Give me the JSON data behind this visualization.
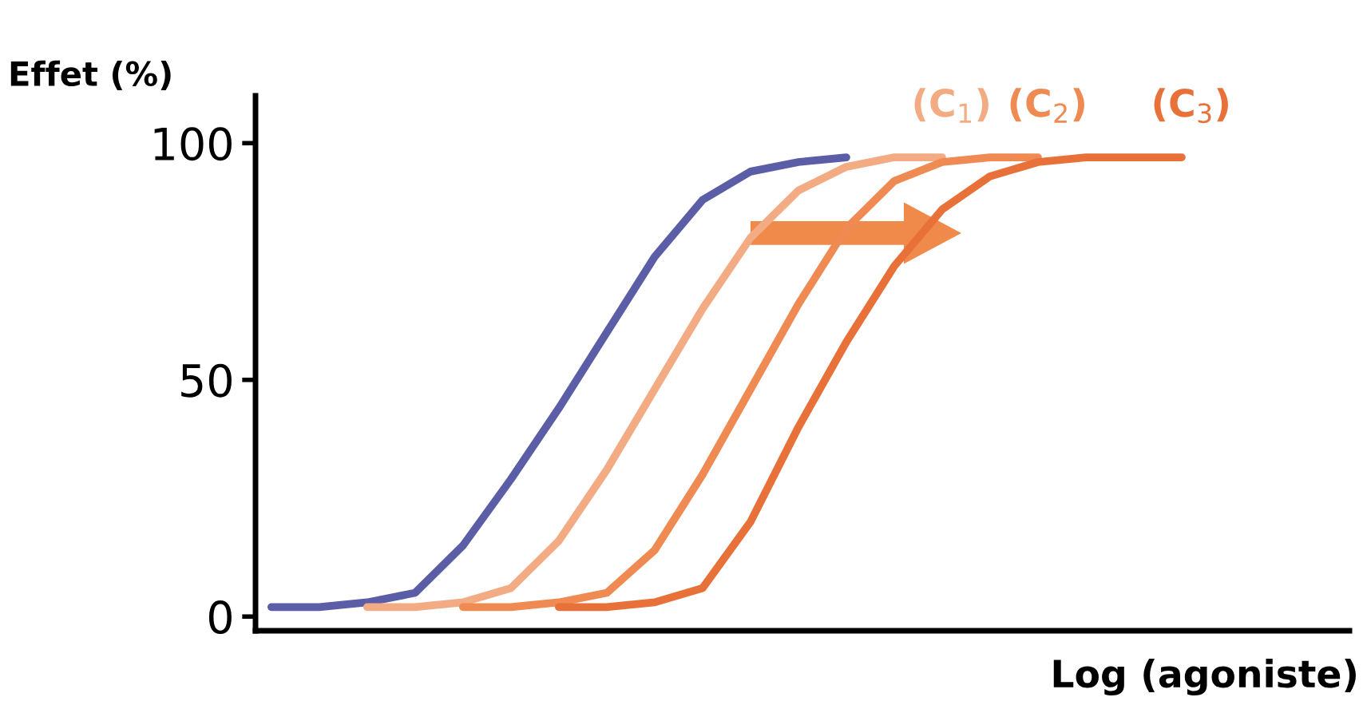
{
  "chart_data": {
    "type": "line",
    "ylabel": "Effet (%)",
    "xlabel": "Log (agoniste)",
    "categories": [
      null,
      null,
      null,
      null,
      null,
      null,
      null,
      null,
      null,
      null,
      null,
      null,
      null,
      null,
      null,
      null,
      null,
      null,
      null,
      null
    ],
    "series": [
      {
        "color": "#5b5ea6",
        "values": [
          2,
          2,
          3,
          5,
          15,
          29,
          44,
          60,
          76,
          88,
          94,
          96,
          97,
          null,
          null,
          null,
          null,
          null,
          null,
          null
        ]
      },
      {
        "name": "(C$_{1}$)",
        "color": "#f3ab84",
        "values": [
          null,
          null,
          2,
          2,
          3,
          6,
          16,
          31,
          48,
          65,
          80,
          90,
          95,
          97,
          97,
          null,
          null,
          null,
          null,
          null
        ]
      },
      {
        "name": "(C$_{2}$)",
        "color": "#ef8a52",
        "values": [
          null,
          null,
          null,
          null,
          2,
          2,
          3,
          5,
          14,
          30,
          48,
          66,
          82,
          92,
          96,
          97,
          97,
          null,
          null,
          null
        ]
      },
      {
        "name": "(C$_{3}$)",
        "color": "#e8713a",
        "values": [
          null,
          null,
          null,
          null,
          null,
          null,
          2,
          2,
          3,
          6,
          20,
          40,
          58,
          74,
          86,
          93,
          96,
          97,
          97,
          97
        ]
      }
    ],
    "ylim": [
      -3,
      110
    ],
    "yticks": [
      0,
      50,
      100
    ],
    "grid": false,
    "legend": false,
    "marker": "none",
    "line_style": "solid"
  }
}
